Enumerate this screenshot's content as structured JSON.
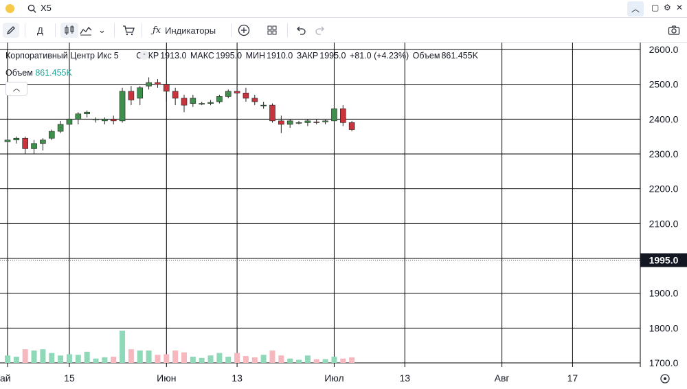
{
  "header": {
    "search_value": "X5",
    "collapse_icon": "chevron-up-icon"
  },
  "toolbar": {
    "interval": "Д",
    "indicators_label": "Индикаторы"
  },
  "legend": {
    "symbol": "Корпоративный Центр Икс 5",
    "open_label": "ОТКР",
    "open": "1913.0",
    "high_label": "МАКС",
    "high": "1995.0",
    "low_label": "МИН",
    "low": "1910.0",
    "close_label": "ЗАКР",
    "close": "1995.0",
    "change": "+81.0 (+4.23%)",
    "volume_label": "Объем",
    "volume": "861.455K"
  },
  "volume_legend": {
    "label": "Объем",
    "value": "861.455K"
  },
  "colors": {
    "up": "#26a69a",
    "down": "#ef5350",
    "up_candle": "#3e8e4c",
    "down_candle": "#c9333c",
    "up_vol": "#8fd9b9",
    "down_vol": "#f7b7be"
  },
  "chart_data": {
    "type": "candlestick",
    "y_ticks": [
      "2600.0",
      "2500.0",
      "2400.0",
      "2300.0",
      "2200.0",
      "2100.0",
      "2000.0",
      "1900.0",
      "1800.0",
      "1700.0"
    ],
    "ylim": [
      1700,
      2600
    ],
    "current_price": "1995.0",
    "x_ticks": [
      {
        "label": "ай",
        "index": 0
      },
      {
        "label": "15",
        "index": 7
      },
      {
        "label": "Июн",
        "index": 18
      },
      {
        "label": "13",
        "index": 26
      },
      {
        "label": "Июл",
        "index": 37
      },
      {
        "label": "13",
        "index": 45
      },
      {
        "label": "Авг",
        "index": 56
      },
      {
        "label": "17",
        "index": 64
      }
    ],
    "candles": [
      {
        "o": 2335,
        "h": 2345,
        "l": 2330,
        "c": 2340,
        "v": 0.12
      },
      {
        "o": 2340,
        "h": 2350,
        "l": 2330,
        "c": 2345,
        "v": 0.1
      },
      {
        "o": 2345,
        "h": 2350,
        "l": 2300,
        "c": 2315,
        "v": 0.22
      },
      {
        "o": 2315,
        "h": 2340,
        "l": 2300,
        "c": 2330,
        "v": 0.2
      },
      {
        "o": 2330,
        "h": 2345,
        "l": 2310,
        "c": 2340,
        "v": 0.22
      },
      {
        "o": 2345,
        "h": 2370,
        "l": 2340,
        "c": 2365,
        "v": 0.16
      },
      {
        "o": 2365,
        "h": 2395,
        "l": 2360,
        "c": 2385,
        "v": 0.12
      },
      {
        "o": 2385,
        "h": 2410,
        "l": 2380,
        "c": 2400,
        "v": 0.14
      },
      {
        "o": 2400,
        "h": 2420,
        "l": 2385,
        "c": 2415,
        "v": 0.13
      },
      {
        "o": 2415,
        "h": 2425,
        "l": 2405,
        "c": 2420,
        "v": 0.18
      },
      {
        "o": 2398,
        "h": 2405,
        "l": 2390,
        "c": 2400,
        "v": 0.07
      },
      {
        "o": 2395,
        "h": 2405,
        "l": 2385,
        "c": 2400,
        "v": 0.09
      },
      {
        "o": 2400,
        "h": 2410,
        "l": 2385,
        "c": 2395,
        "v": 0.1
      },
      {
        "o": 2395,
        "h": 2490,
        "l": 2390,
        "c": 2480,
        "v": 0.52
      },
      {
        "o": 2480,
        "h": 2495,
        "l": 2440,
        "c": 2455,
        "v": 0.22
      },
      {
        "o": 2460,
        "h": 2495,
        "l": 2440,
        "c": 2490,
        "v": 0.2
      },
      {
        "o": 2495,
        "h": 2520,
        "l": 2485,
        "c": 2505,
        "v": 0.2
      },
      {
        "o": 2505,
        "h": 2515,
        "l": 2490,
        "c": 2500,
        "v": 0.13
      },
      {
        "o": 2500,
        "h": 2510,
        "l": 2450,
        "c": 2480,
        "v": 0.14
      },
      {
        "o": 2480,
        "h": 2490,
        "l": 2440,
        "c": 2460,
        "v": 0.2
      },
      {
        "o": 2460,
        "h": 2470,
        "l": 2420,
        "c": 2440,
        "v": 0.17
      },
      {
        "o": 2445,
        "h": 2470,
        "l": 2435,
        "c": 2460,
        "v": 0.1
      },
      {
        "o": 2445,
        "h": 2450,
        "l": 2440,
        "c": 2445,
        "v": 0.08
      },
      {
        "o": 2445,
        "h": 2455,
        "l": 2440,
        "c": 2448,
        "v": 0.12
      },
      {
        "o": 2450,
        "h": 2470,
        "l": 2445,
        "c": 2465,
        "v": 0.16
      },
      {
        "o": 2465,
        "h": 2485,
        "l": 2460,
        "c": 2480,
        "v": 0.1
      },
      {
        "o": 2480,
        "h": 2495,
        "l": 2460,
        "c": 2475,
        "v": 0.16
      },
      {
        "o": 2475,
        "h": 2490,
        "l": 2450,
        "c": 2460,
        "v": 0.11
      },
      {
        "o": 2460,
        "h": 2470,
        "l": 2440,
        "c": 2450,
        "v": 0.09
      },
      {
        "o": 2440,
        "h": 2450,
        "l": 2430,
        "c": 2440,
        "v": 0.13
      },
      {
        "o": 2440,
        "h": 2445,
        "l": 2390,
        "c": 2395,
        "v": 0.2
      },
      {
        "o": 2395,
        "h": 2410,
        "l": 2360,
        "c": 2385,
        "v": 0.12
      },
      {
        "o": 2385,
        "h": 2400,
        "l": 2375,
        "c": 2395,
        "v": 0.07
      },
      {
        "o": 2390,
        "h": 2395,
        "l": 2385,
        "c": 2390,
        "v": 0.05
      },
      {
        "o": 2390,
        "h": 2400,
        "l": 2380,
        "c": 2395,
        "v": 0.12
      },
      {
        "o": 2392,
        "h": 2400,
        "l": 2385,
        "c": 2390,
        "v": 0.06
      },
      {
        "o": 2392,
        "h": 2398,
        "l": 2385,
        "c": 2395,
        "v": 0.06
      },
      {
        "o": 2395,
        "h": 2440,
        "l": 2390,
        "c": 2430,
        "v": 0.1
      },
      {
        "o": 2430,
        "h": 2440,
        "l": 2380,
        "c": 2390,
        "v": 0.07
      },
      {
        "o": 2390,
        "h": 2395,
        "l": 2365,
        "c": 2370,
        "v": 0.09
      }
    ]
  }
}
